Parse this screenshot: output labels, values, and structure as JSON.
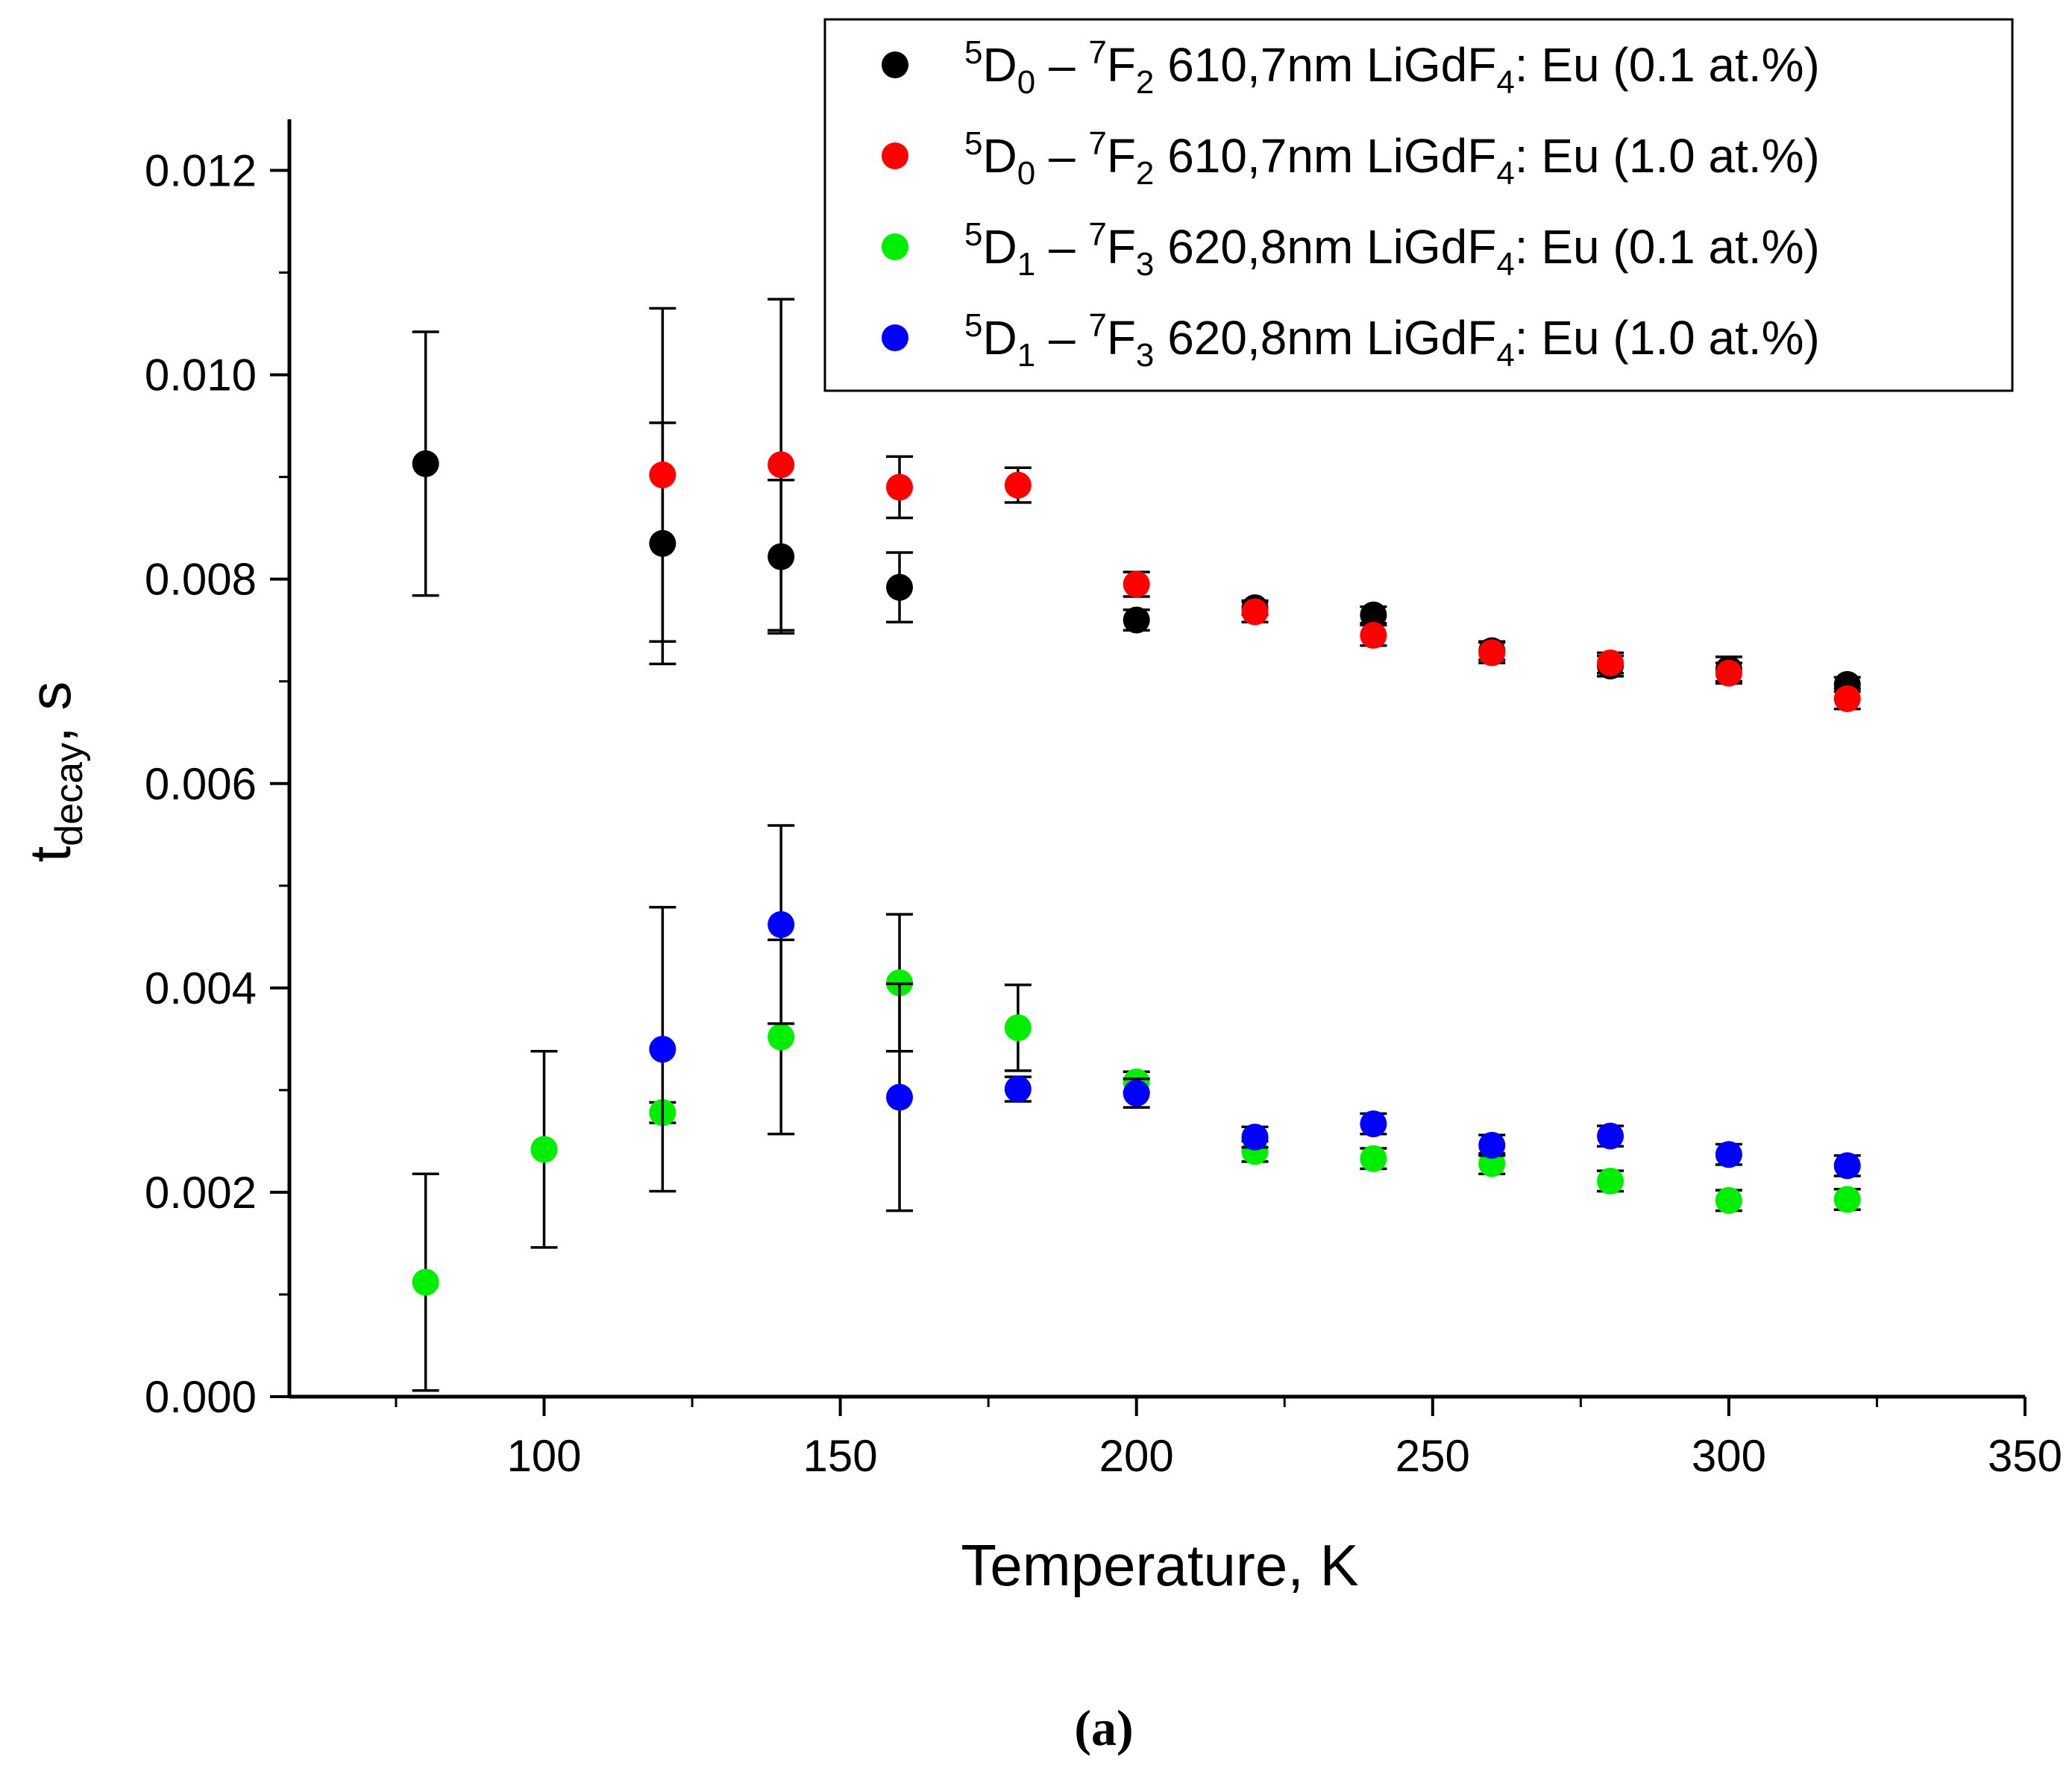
{
  "chart_data": {
    "type": "scatter",
    "xlabel": "Temperature, K",
    "ylabel": {
      "base": "t",
      "sub": "decay",
      "suffix": ", s"
    },
    "xlim": [
      57,
      350
    ],
    "ylim": [
      0.0,
      0.0125
    ],
    "xticks": [
      100,
      150,
      200,
      250,
      300,
      350
    ],
    "xtick_labels": [
      "100",
      "150",
      "200",
      "250",
      "300",
      "350"
    ],
    "yticks": [
      0.0,
      0.002,
      0.004,
      0.006,
      0.008,
      0.01,
      0.012
    ],
    "ytick_labels": [
      "0.000",
      "0.002",
      "0.004",
      "0.006",
      "0.008",
      "0.010",
      "0.012"
    ],
    "legend_position": "top-right",
    "caption": "(a)",
    "series": [
      {
        "name": "5D0 – 7F2 610,7nm LiGdF4: Eu (0.1 at.%)",
        "label": {
          "sup1": "5",
          "base1": "D",
          "sub1": "0",
          "dash": " – ",
          "sup2": "7",
          "base2": "F",
          "sub2": "2",
          "mid": " 610,7nm LiGdF",
          "sub3": "4",
          "tail": ": Eu (0.1 at.%)"
        },
        "color": "#000000",
        "x": [
          80,
          120,
          140,
          160,
          200,
          220,
          240,
          260,
          280,
          300,
          320
        ],
        "y": [
          0.00913,
          0.00835,
          0.00822,
          0.00792,
          0.0076,
          0.00772,
          0.00765,
          0.0073,
          0.00715,
          0.00712,
          0.00697
        ],
        "err": [
          0.00129,
          0.00118,
          0.00075,
          0.00034,
          0.0001,
          7e-05,
          8e-05,
          9e-05,
          0.0001,
          0.00012,
          7e-05
        ]
      },
      {
        "name": "5D0 – 7F2 610,7nm LiGdF4: Eu (1.0 at.%)",
        "label": {
          "sup1": "5",
          "base1": "D",
          "sub1": "0",
          "dash": " – ",
          "sup2": "7",
          "base2": "F",
          "sub2": "2",
          "mid": " 610,7nm LiGdF",
          "sub3": "4",
          "tail": ": Eu (1.0 at.%)"
        },
        "color": "#ff0000",
        "x": [
          120,
          140,
          160,
          180,
          200,
          220,
          240,
          260,
          280,
          300,
          320
        ],
        "y": [
          0.00902,
          0.00912,
          0.0089,
          0.00892,
          0.00795,
          0.00768,
          0.00745,
          0.00728,
          0.00718,
          0.00708,
          0.00683
        ],
        "err": [
          0.00163,
          0.00162,
          0.0003,
          0.00017,
          0.00012,
          0.0001,
          0.0001,
          0.0001,
          0.0001,
          0.0001,
          0.0001
        ]
      },
      {
        "name": "5D1 – 7F3 620,8nm LiGdF4: Eu (0.1 at.%)",
        "label": {
          "sup1": "5",
          "base1": "D",
          "sub1": "1",
          "dash": " – ",
          "sup2": "7",
          "base2": "F",
          "sub2": "3",
          "mid": " 620,8nm LiGdF",
          "sub3": "4",
          "tail": ": Eu (0.1 at.%)"
        },
        "color": "#00ee00",
        "x": [
          80,
          100,
          120,
          140,
          160,
          180,
          200,
          220,
          240,
          260,
          280,
          300,
          320
        ],
        "y": [
          0.00112,
          0.00242,
          0.00278,
          0.00352,
          0.00405,
          0.00361,
          0.00308,
          0.0024,
          0.00233,
          0.00228,
          0.00211,
          0.00192,
          0.00193
        ],
        "err": [
          0.00106,
          0.00096,
          0.0001,
          0.00095,
          0.00067,
          0.00042,
          0.0001,
          0.0001,
          0.0001,
          0.0001,
          0.0001,
          0.0001,
          0.0001
        ]
      },
      {
        "name": "5D1 – 7F3 620,8nm LiGdF4: Eu (1.0 at.%)",
        "label": {
          "sup1": "5",
          "base1": "D",
          "sub1": "1",
          "dash": " – ",
          "sup2": "7",
          "base2": "F",
          "sub2": "3",
          "mid": " 620,8nm LiGdF",
          "sub3": "4",
          "tail": ": Eu (1.0 at.%)"
        },
        "color": "#0000ff",
        "x": [
          120,
          140,
          160,
          180,
          200,
          220,
          240,
          260,
          280,
          300,
          320
        ],
        "y": [
          0.0034,
          0.00462,
          0.00293,
          0.00301,
          0.00297,
          0.00254,
          0.00267,
          0.00246,
          0.00255,
          0.00237,
          0.00226
        ],
        "err": [
          0.00139,
          0.00097,
          0.00111,
          0.00012,
          0.00014,
          0.0001,
          0.0001,
          0.0001,
          0.0001,
          0.0001,
          0.0001
        ]
      }
    ]
  }
}
